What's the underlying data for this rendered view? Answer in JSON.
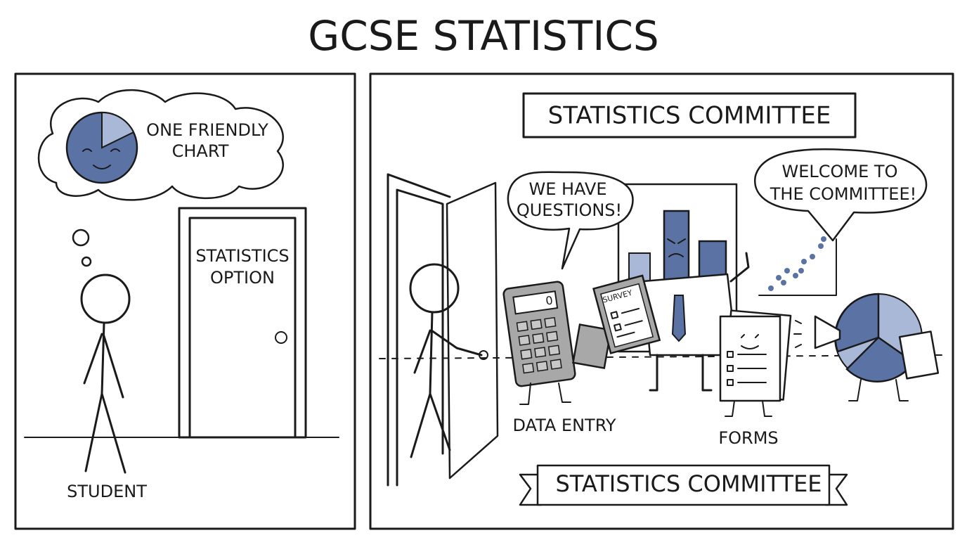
{
  "header": {
    "title": "GCSE STATISTICS"
  },
  "panel_1": {
    "thought": [
      "ONE FRIENDLY",
      "CHART"
    ],
    "door_sign": [
      "STATISTICS",
      "OPTION"
    ],
    "student_label": "STUDENT"
  },
  "panel_2": {
    "sign": "STATISTICS COMMITTEE",
    "speech_left": [
      "WE HAVE",
      "QUESTIONS!"
    ],
    "speech_right": [
      "WELCOME TO",
      "THE COMMITTEE!"
    ],
    "calculator_display": "0",
    "clipboard_label": "SURVEY",
    "label_data_entry": "DATA ENTRY",
    "label_forms": "FORMS",
    "banner": "STATISTICS COMMITTEE"
  }
}
